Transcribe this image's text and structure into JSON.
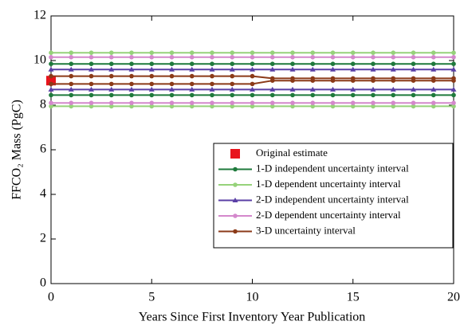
{
  "chart_data": {
    "type": "line",
    "xlabel": "Years Since First Inventory Year Publication",
    "ylabel": "FFCO₂ Mass (PgC)",
    "x": [
      0,
      1,
      2,
      3,
      4,
      5,
      6,
      7,
      8,
      9,
      10,
      11,
      12,
      13,
      14,
      15,
      16,
      17,
      18,
      19,
      20
    ],
    "xlim": [
      0,
      20
    ],
    "xticks": [
      0,
      5,
      10,
      15,
      20
    ],
    "ylim": [
      0,
      12
    ],
    "yticks": [
      0,
      2,
      4,
      6,
      8,
      10,
      12
    ],
    "legend": "lower right",
    "series": [
      {
        "name": "Original estimate",
        "color": "#e8141c",
        "marker": "square",
        "x": [
          0
        ],
        "values": [
          9.1
        ]
      },
      {
        "name": "1-D independent uncertainty interval",
        "color": "#1f7a3c",
        "marker": "circle",
        "upper": [
          9.85,
          9.85,
          9.85,
          9.85,
          9.85,
          9.85,
          9.85,
          9.85,
          9.85,
          9.85,
          9.85,
          9.85,
          9.85,
          9.85,
          9.85,
          9.85,
          9.85,
          9.85,
          9.85,
          9.85,
          9.85
        ],
        "lower": [
          8.45,
          8.45,
          8.45,
          8.45,
          8.45,
          8.45,
          8.45,
          8.45,
          8.45,
          8.45,
          8.45,
          8.45,
          8.45,
          8.45,
          8.45,
          8.45,
          8.45,
          8.45,
          8.45,
          8.45,
          8.45
        ]
      },
      {
        "name": "1-D dependent uncertainty interval",
        "color": "#96d27a",
        "marker": "circle",
        "upper": [
          10.35,
          10.35,
          10.35,
          10.35,
          10.35,
          10.35,
          10.35,
          10.35,
          10.35,
          10.35,
          10.35,
          10.35,
          10.35,
          10.35,
          10.35,
          10.35,
          10.35,
          10.35,
          10.35,
          10.35,
          10.35
        ],
        "lower": [
          7.95,
          7.95,
          7.95,
          7.95,
          7.95,
          7.95,
          7.95,
          7.95,
          7.95,
          7.95,
          7.95,
          7.95,
          7.95,
          7.95,
          7.95,
          7.95,
          7.95,
          7.95,
          7.95,
          7.95,
          7.95
        ]
      },
      {
        "name": "2-D independent uncertainty interval",
        "color": "#5a3fa6",
        "marker": "triangle",
        "upper": [
          9.6,
          9.6,
          9.6,
          9.6,
          9.6,
          9.6,
          9.6,
          9.6,
          9.6,
          9.6,
          9.6,
          9.6,
          9.6,
          9.6,
          9.6,
          9.6,
          9.6,
          9.6,
          9.6,
          9.6,
          9.6
        ],
        "lower": [
          8.7,
          8.7,
          8.7,
          8.7,
          8.7,
          8.7,
          8.7,
          8.7,
          8.7,
          8.7,
          8.7,
          8.7,
          8.7,
          8.7,
          8.7,
          8.7,
          8.7,
          8.7,
          8.7,
          8.7,
          8.7
        ]
      },
      {
        "name": "2-D dependent uncertainty interval",
        "color": "#d488cc",
        "marker": "circle",
        "upper": [
          10.15,
          10.15,
          10.15,
          10.15,
          10.15,
          10.15,
          10.15,
          10.15,
          10.15,
          10.15,
          10.15,
          10.15,
          10.15,
          10.15,
          10.15,
          10.15,
          10.15,
          10.15,
          10.15,
          10.15,
          10.15
        ],
        "lower": [
          8.1,
          8.1,
          8.1,
          8.1,
          8.1,
          8.1,
          8.1,
          8.1,
          8.1,
          8.1,
          8.1,
          8.1,
          8.1,
          8.1,
          8.1,
          8.1,
          8.1,
          8.1,
          8.1,
          8.1,
          8.1
        ]
      },
      {
        "name": "3-D uncertainty interval",
        "color": "#8b3a18",
        "marker": "circle",
        "upper": [
          9.3,
          9.3,
          9.3,
          9.3,
          9.3,
          9.3,
          9.3,
          9.3,
          9.3,
          9.3,
          9.3,
          9.2,
          9.2,
          9.2,
          9.2,
          9.2,
          9.2,
          9.2,
          9.2,
          9.2,
          9.2
        ],
        "lower": [
          8.95,
          8.95,
          8.95,
          8.95,
          8.95,
          8.95,
          8.95,
          8.95,
          8.95,
          8.95,
          8.95,
          9.1,
          9.1,
          9.1,
          9.1,
          9.1,
          9.1,
          9.1,
          9.1,
          9.1,
          9.1
        ]
      }
    ]
  }
}
